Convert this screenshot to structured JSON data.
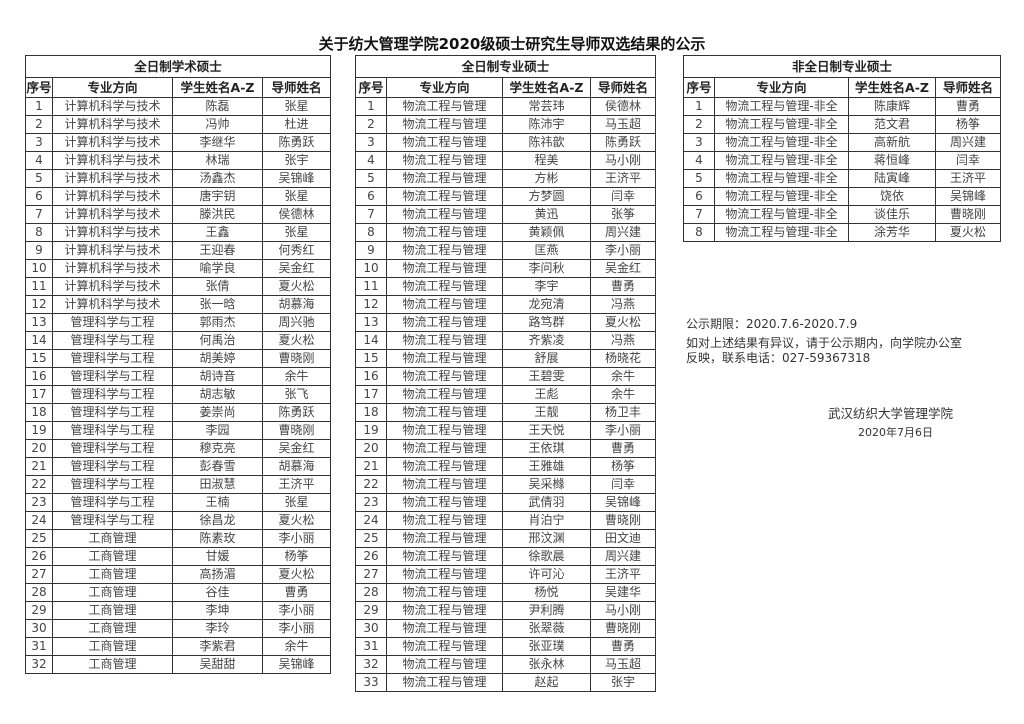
{
  "title": "关于纺大管理学院2020级硕士研究生导师双选结果的公示",
  "columns": [
    "序号",
    "专业方向",
    "学生姓名A-Z",
    "导师姓名"
  ],
  "tables": [
    {
      "caption": "全日制学术硕士",
      "rows": [
        [
          "1",
          "计算机科学与技术",
          "陈磊",
          "张星"
        ],
        [
          "2",
          "计算机科学与技术",
          "冯帅",
          "杜进"
        ],
        [
          "3",
          "计算机科学与技术",
          "李继华",
          "陈勇跃"
        ],
        [
          "4",
          "计算机科学与技术",
          "林瑞",
          "张宇"
        ],
        [
          "5",
          "计算机科学与技术",
          "汤鑫杰",
          "吴锦峰"
        ],
        [
          "6",
          "计算机科学与技术",
          "唐宇钥",
          "张星"
        ],
        [
          "7",
          "计算机科学与技术",
          "滕洪民",
          "侯德林"
        ],
        [
          "8",
          "计算机科学与技术",
          "王鑫",
          "张星"
        ],
        [
          "9",
          "计算机科学与技术",
          "王迎春",
          "何秀红"
        ],
        [
          "10",
          "计算机科学与技术",
          "喻学良",
          "吴金红"
        ],
        [
          "11",
          "计算机科学与技术",
          "张倩",
          "夏火松"
        ],
        [
          "12",
          "计算机科学与技术",
          "张一晗",
          "胡慕海"
        ],
        [
          "13",
          "管理科学与工程",
          "郭雨杰",
          "周兴驰"
        ],
        [
          "14",
          "管理科学与工程",
          "何禹治",
          "夏火松"
        ],
        [
          "15",
          "管理科学与工程",
          "胡美婷",
          "曹晓刚"
        ],
        [
          "16",
          "管理科学与工程",
          "胡诗音",
          "余牛"
        ],
        [
          "17",
          "管理科学与工程",
          "胡志敏",
          "张飞"
        ],
        [
          "18",
          "管理科学与工程",
          "姜崇尚",
          "陈勇跃"
        ],
        [
          "19",
          "管理科学与工程",
          "李园",
          "曹晓刚"
        ],
        [
          "20",
          "管理科学与工程",
          "穆克亮",
          "吴金红"
        ],
        [
          "21",
          "管理科学与工程",
          "彭春雪",
          "胡慕海"
        ],
        [
          "22",
          "管理科学与工程",
          "田淑慧",
          "王济平"
        ],
        [
          "23",
          "管理科学与工程",
          "王楠",
          "张星"
        ],
        [
          "24",
          "管理科学与工程",
          "徐昌龙",
          "夏火松"
        ],
        [
          "25",
          "工商管理",
          "陈素玫",
          "李小丽"
        ],
        [
          "26",
          "工商管理",
          "甘媛",
          "杨筝"
        ],
        [
          "27",
          "工商管理",
          "高扬湄",
          "夏火松"
        ],
        [
          "28",
          "工商管理",
          "谷佳",
          "曹勇"
        ],
        [
          "29",
          "工商管理",
          "李坤",
          "李小丽"
        ],
        [
          "30",
          "工商管理",
          "李玲",
          "李小丽"
        ],
        [
          "31",
          "工商管理",
          "李紫君",
          "余牛"
        ],
        [
          "32",
          "工商管理",
          "吴甜甜",
          "吴锦峰"
        ]
      ]
    },
    {
      "caption": "全日制专业硕士",
      "rows": [
        [
          "1",
          "物流工程与管理",
          "常芸玮",
          "侯德林"
        ],
        [
          "2",
          "物流工程与管理",
          "陈沛宇",
          "马玉超"
        ],
        [
          "3",
          "物流工程与管理",
          "陈祎歆",
          "陈勇跃"
        ],
        [
          "4",
          "物流工程与管理",
          "程美",
          "马小刚"
        ],
        [
          "5",
          "物流工程与管理",
          "方彬",
          "王济平"
        ],
        [
          "6",
          "物流工程与管理",
          "方梦圆",
          "闫幸"
        ],
        [
          "7",
          "物流工程与管理",
          "黄迅",
          "张筝"
        ],
        [
          "8",
          "物流工程与管理",
          "黄颖佩",
          "周兴建"
        ],
        [
          "9",
          "物流工程与管理",
          "匡燕",
          "李小丽"
        ],
        [
          "10",
          "物流工程与管理",
          "李问秋",
          "吴金红"
        ],
        [
          "11",
          "物流工程与管理",
          "李宇",
          "曹勇"
        ],
        [
          "12",
          "物流工程与管理",
          "龙宛清",
          "冯燕"
        ],
        [
          "13",
          "物流工程与管理",
          "路笃群",
          "夏火松"
        ],
        [
          "14",
          "物流工程与管理",
          "齐紫凌",
          "冯燕"
        ],
        [
          "15",
          "物流工程与管理",
          "舒展",
          "杨晓花"
        ],
        [
          "16",
          "物流工程与管理",
          "王碧雯",
          "余牛"
        ],
        [
          "17",
          "物流工程与管理",
          "王彪",
          "余牛"
        ],
        [
          "18",
          "物流工程与管理",
          "王靓",
          "杨卫丰"
        ],
        [
          "19",
          "物流工程与管理",
          "王天悦",
          "李小丽"
        ],
        [
          "20",
          "物流工程与管理",
          "王依琪",
          "曹勇"
        ],
        [
          "21",
          "物流工程与管理",
          "王雅雄",
          "杨筝"
        ],
        [
          "22",
          "物流工程与管理",
          "吴采橼",
          "闫幸"
        ],
        [
          "23",
          "物流工程与管理",
          "武倩羽",
          "吴锦峰"
        ],
        [
          "24",
          "物流工程与管理",
          "肖泊宁",
          "曹晓刚"
        ],
        [
          "25",
          "物流工程与管理",
          "邢汶渊",
          "田文迪"
        ],
        [
          "26",
          "物流工程与管理",
          "徐歌晨",
          "周兴建"
        ],
        [
          "27",
          "物流工程与管理",
          "许可沁",
          "王济平"
        ],
        [
          "28",
          "物流工程与管理",
          "杨悦",
          "吴建华"
        ],
        [
          "29",
          "物流工程与管理",
          "尹利腾",
          "马小刚"
        ],
        [
          "30",
          "物流工程与管理",
          "张翠薇",
          "曹晓刚"
        ],
        [
          "31",
          "物流工程与管理",
          "张亚璞",
          "曹勇"
        ],
        [
          "32",
          "物流工程与管理",
          "张永林",
          "马玉超"
        ],
        [
          "33",
          "物流工程与管理",
          "赵起",
          "张宇"
        ]
      ]
    },
    {
      "caption": "非全日制专业硕士",
      "rows": [
        [
          "1",
          "物流工程与管理-非全",
          "陈康辉",
          "曹勇"
        ],
        [
          "2",
          "物流工程与管理-非全",
          "范文君",
          "杨筝"
        ],
        [
          "3",
          "物流工程与管理-非全",
          "高新航",
          "周兴建"
        ],
        [
          "4",
          "物流工程与管理-非全",
          "蒋恒峰",
          "闫幸"
        ],
        [
          "5",
          "物流工程与管理-非全",
          "陆寅峰",
          "王济平"
        ],
        [
          "6",
          "物流工程与管理-非全",
          "饶依",
          "吴锦峰"
        ],
        [
          "7",
          "物流工程与管理-非全",
          "谈佳乐",
          "曹晓刚"
        ],
        [
          "8",
          "物流工程与管理-非全",
          "涂芳华",
          "夏火松"
        ]
      ]
    }
  ],
  "notice": {
    "period": "公示期限：2020.7.6-2020.7.9",
    "objection_line1": "如对上述结果有异议，请于公示期内，向学院办公室",
    "objection_line2": "反映，联系电话：027-59367318",
    "organization": "武汉纺织大学管理学院",
    "date": "2020年7月6日"
  }
}
